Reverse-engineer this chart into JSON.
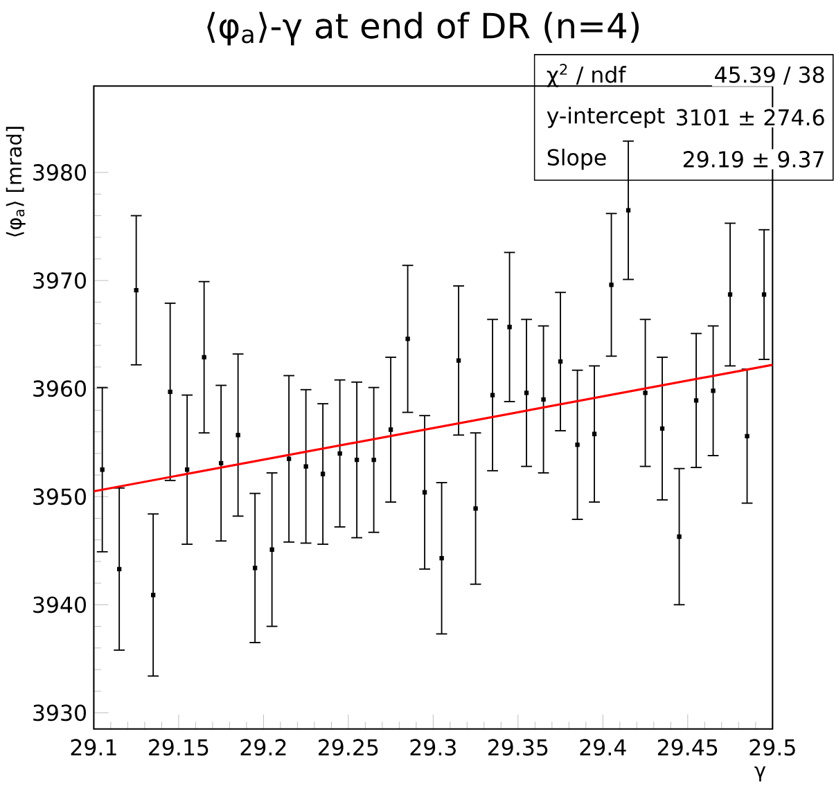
{
  "chart_data": {
    "type": "scatter",
    "title": "⟨φ$_{a}$⟩-γ at end of DR (n=4)",
    "xlabel": "γ",
    "ylabel": "⟨φ$_{a}$⟩ [mrad]",
    "xlim": [
      29.1,
      29.5
    ],
    "ylim": [
      3928.5,
      3988
    ],
    "xticks": [
      29.1,
      29.15,
      29.2,
      29.25,
      29.3,
      29.35,
      29.4,
      29.45,
      29.5
    ],
    "yticks": [
      3930,
      3940,
      3950,
      3960,
      3970,
      3980
    ],
    "annotations": [
      "χ$^{2}$ / ndf",
      "45.39 / 38",
      "y-intercept",
      "3101 ± 274.6",
      "Slope",
      "29.19 ±  9.37"
    ],
    "series": [
      {
        "marker": "square",
        "color": "#000000",
        "x": [
          29.105,
          29.115,
          29.125,
          29.135,
          29.145,
          29.155,
          29.165,
          29.175,
          29.185,
          29.195,
          29.205,
          29.215,
          29.225,
          29.235,
          29.245,
          29.255,
          29.265,
          29.275,
          29.285,
          29.295,
          29.305,
          29.315,
          29.325,
          29.335,
          29.345,
          29.355,
          29.365,
          29.375,
          29.385,
          29.395,
          29.405,
          29.415,
          29.425,
          29.435,
          29.445,
          29.455,
          29.465,
          29.475,
          29.485,
          29.495
        ],
        "values": [
          3952.5,
          3943.3,
          3969.1,
          3940.9,
          3959.7,
          3952.5,
          3962.9,
          3953.1,
          3955.7,
          3943.4,
          3945.1,
          3953.5,
          3952.8,
          3952.1,
          3954.0,
          3953.4,
          3953.4,
          3956.2,
          3964.6,
          3950.4,
          3944.3,
          3962.6,
          3948.9,
          3959.4,
          3965.7,
          3959.6,
          3959.0,
          3962.5,
          3954.8,
          3955.8,
          3969.6,
          3976.5,
          3959.6,
          3956.3,
          3946.3,
          3958.9,
          3959.8,
          3968.7,
          3955.6,
          3968.7
        ],
        "errors": [
          7.6,
          7.5,
          6.9,
          7.5,
          8.2,
          6.9,
          7.0,
          7.2,
          7.5,
          6.9,
          7.1,
          7.7,
          7.1,
          6.5,
          6.8,
          7.2,
          6.7,
          6.7,
          6.8,
          7.1,
          7.0,
          6.9,
          7.0,
          7.0,
          6.9,
          6.8,
          6.8,
          6.4,
          6.9,
          6.3,
          6.6,
          6.4,
          6.8,
          6.6,
          6.3,
          6.2,
          6.0,
          6.6,
          6.2,
          6.0
        ]
      },
      {
        "type": "line",
        "color": "#ff0000",
        "x": [
          29.1,
          29.5
        ],
        "values": [
          3950.5,
          3962.2
        ]
      }
    ]
  }
}
